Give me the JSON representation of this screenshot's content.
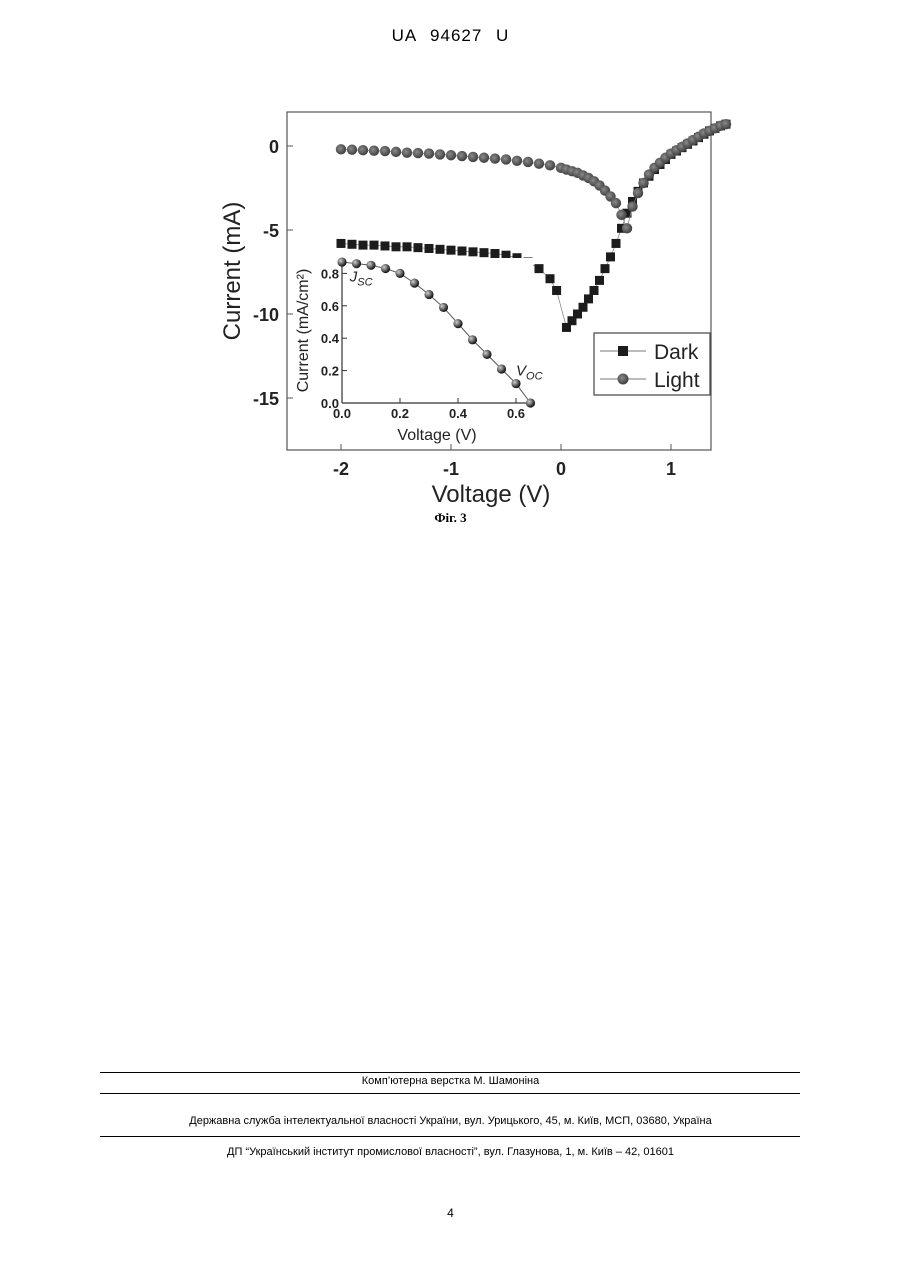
{
  "header": {
    "patent_number": "UA   94627   U"
  },
  "figure": {
    "caption": "Фіг. 3"
  },
  "chart_data": [
    {
      "type": "scatter",
      "xlabel": "Voltage (V)",
      "ylabel": "Current (mA)",
      "xlim": [
        -2.5,
        1.8
      ],
      "ylim": [
        -18,
        2
      ],
      "xticks": [
        -2,
        -1,
        0,
        1
      ],
      "yticks": [
        0,
        -5,
        -10,
        -15
      ],
      "legend": {
        "placement": "bottom-right"
      },
      "series": [
        {
          "name": "Dark",
          "marker": "square",
          "x": [
            -2.0,
            -1.9,
            -1.8,
            -1.7,
            -1.6,
            -1.5,
            -1.4,
            -1.3,
            -1.2,
            -1.1,
            -1.0,
            -0.9,
            -0.8,
            -0.7,
            -0.6,
            -0.5,
            -0.4,
            -0.3,
            -0.2,
            -0.1,
            -0.04,
            0.05,
            0.1,
            0.15,
            0.2,
            0.25,
            0.3,
            0.35,
            0.4,
            0.45,
            0.5,
            0.55,
            0.6,
            0.65,
            0.7,
            0.75,
            0.8,
            0.85,
            0.9,
            0.95,
            1.0,
            1.05,
            1.1,
            1.15,
            1.2,
            1.25,
            1.3,
            1.35,
            1.4,
            1.45,
            1.5
          ],
          "y": [
            -5.8,
            -5.85,
            -5.9,
            -5.9,
            -5.95,
            -6.0,
            -6.0,
            -6.05,
            -6.1,
            -6.15,
            -6.2,
            -6.25,
            -6.3,
            -6.35,
            -6.4,
            -6.5,
            -6.65,
            -6.9,
            -7.3,
            -7.9,
            -8.6,
            -10.8,
            -10.4,
            -10.0,
            -9.6,
            -9.1,
            -8.6,
            -8.0,
            -7.3,
            -6.6,
            -5.8,
            -4.9,
            -4.0,
            -3.3,
            -2.7,
            -2.2,
            -1.8,
            -1.4,
            -1.1,
            -0.8,
            -0.5,
            -0.3,
            -0.1,
            0.1,
            0.3,
            0.5,
            0.7,
            0.9,
            1.05,
            1.2,
            1.3
          ]
        },
        {
          "name": "Light",
          "marker": "circle",
          "x": [
            -2.0,
            -1.9,
            -1.8,
            -1.7,
            -1.6,
            -1.5,
            -1.4,
            -1.3,
            -1.2,
            -1.1,
            -1.0,
            -0.9,
            -0.8,
            -0.7,
            -0.6,
            -0.5,
            -0.4,
            -0.3,
            -0.2,
            -0.1,
            0.0,
            0.05,
            0.1,
            0.15,
            0.2,
            0.25,
            0.3,
            0.35,
            0.4,
            0.45,
            0.5,
            0.55,
            0.6,
            0.65,
            0.7,
            0.75,
            0.8,
            0.85,
            0.9,
            0.95,
            1.0,
            1.05,
            1.1,
            1.15,
            1.2,
            1.25,
            1.3,
            1.35,
            1.4,
            1.45,
            1.5
          ],
          "y": [
            -0.2,
            -0.22,
            -0.25,
            -0.28,
            -0.3,
            -0.35,
            -0.4,
            -0.42,
            -0.45,
            -0.5,
            -0.55,
            -0.6,
            -0.65,
            -0.7,
            -0.75,
            -0.8,
            -0.88,
            -0.95,
            -1.05,
            -1.15,
            -1.3,
            -1.4,
            -1.5,
            -1.6,
            -1.75,
            -1.9,
            -2.1,
            -2.35,
            -2.65,
            -3.0,
            -3.4,
            -4.1,
            -4.9,
            -3.6,
            -2.8,
            -2.2,
            -1.7,
            -1.3,
            -1.0,
            -0.7,
            -0.45,
            -0.25,
            -0.05,
            0.15,
            0.35,
            0.55,
            0.75,
            0.9,
            1.05,
            1.2,
            1.3
          ]
        }
      ]
    },
    {
      "type": "line",
      "xlabel": "Voltage (V)",
      "ylabel": "Current (mA/cm²)",
      "xlim": [
        0,
        0.7
      ],
      "ylim": [
        0,
        0.95
      ],
      "xticks": [
        0.0,
        0.2,
        0.4,
        0.6
      ],
      "yticks": [
        0.0,
        0.2,
        0.4,
        0.6,
        0.8
      ],
      "tick_labels_x": [
        "0.0",
        "0.2",
        "0.4",
        "0.6"
      ],
      "tick_labels_y": [
        "0.0",
        "0.2",
        "0.4",
        "0.6",
        "0.8"
      ],
      "annotations": [
        {
          "text": "J",
          "subscript": "SC",
          "x": 0.02,
          "y": 0.8
        },
        {
          "text": "V",
          "subscript": "OC",
          "x": 0.6,
          "y": 0.17
        }
      ],
      "series": [
        {
          "marker": "sphere",
          "x": [
            0.0,
            0.05,
            0.1,
            0.15,
            0.2,
            0.25,
            0.3,
            0.35,
            0.4,
            0.45,
            0.5,
            0.55,
            0.6,
            0.65
          ],
          "y": [
            0.87,
            0.86,
            0.85,
            0.83,
            0.8,
            0.74,
            0.67,
            0.59,
            0.49,
            0.39,
            0.3,
            0.21,
            0.12,
            0.0
          ]
        }
      ]
    }
  ],
  "footer": {
    "layout_credit": "Комп’ютерна верстка М. Шамоніна",
    "agency": "Державна служба інтелектуальної власності України, вул. Урицького, 45, м. Київ, МСП, 03680, Україна",
    "institute": "ДП “Український інститут промислової власності”, вул. Глазунова, 1, м. Київ – 42, 01601",
    "page_number": "4"
  }
}
